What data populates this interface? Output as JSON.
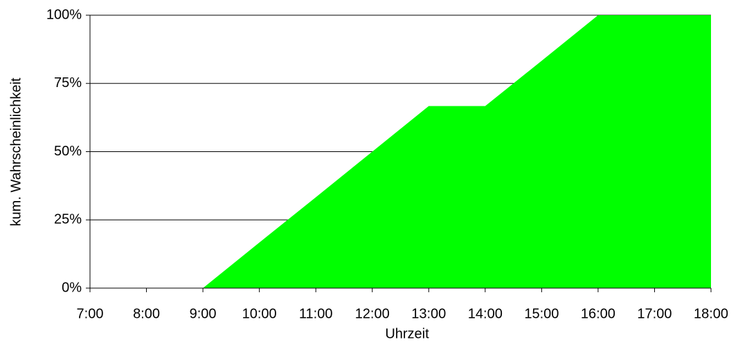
{
  "chart_data": {
    "type": "area",
    "x_label": "Uhrzeit",
    "y_label": "kum. Wahrscheinlichkeit",
    "categories": [
      "7:00",
      "8:00",
      "9:00",
      "10:00",
      "11:00",
      "12:00",
      "13:00",
      "14:00",
      "15:00",
      "16:00",
      "17:00",
      "18:00"
    ],
    "values": [
      0,
      0,
      0,
      16.7,
      33.3,
      50,
      66.7,
      66.7,
      83.3,
      100,
      100,
      100
    ],
    "color": "#00ff00",
    "ylim": [
      0,
      100
    ],
    "yticks": [
      {
        "value": 0,
        "label": "0%"
      },
      {
        "value": 25,
        "label": "25%"
      },
      {
        "value": 50,
        "label": "50%"
      },
      {
        "value": 75,
        "label": "75%"
      },
      {
        "value": 100,
        "label": "100%"
      }
    ],
    "grid": true
  }
}
